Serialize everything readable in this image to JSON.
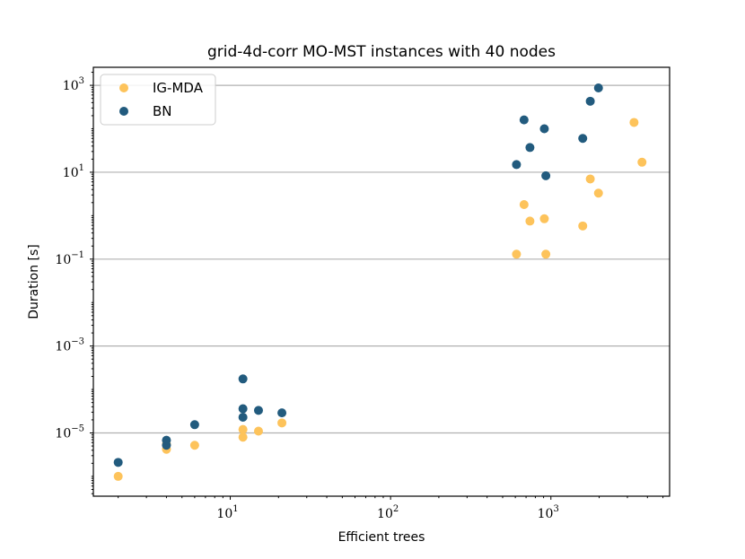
{
  "chart_data": {
    "type": "scatter",
    "title": "grid-4d-corr MO-MST instances with 40 nodes",
    "xlabel": "Efficient trees",
    "ylabel": "Duration [s]",
    "xscale": "log",
    "yscale": "log",
    "xlim": [
      1.4,
      5500
    ],
    "ylim": [
      3.5e-07,
      2600
    ],
    "grid": "y-major",
    "legend_position": "top-left",
    "xticks": [
      {
        "value": 10,
        "base": "10",
        "exp": "1"
      },
      {
        "value": 100,
        "base": "10",
        "exp": "2"
      },
      {
        "value": 1000,
        "base": "10",
        "exp": "3"
      }
    ],
    "yticks": [
      {
        "value": 1000.0,
        "base": "10",
        "exp": "3"
      },
      {
        "value": 10.0,
        "base": "10",
        "exp": "1"
      },
      {
        "value": 0.1,
        "base": "10",
        "exp": "−1"
      },
      {
        "value": 0.001,
        "base": "10",
        "exp": "−3"
      },
      {
        "value": 1e-05,
        "base": "10",
        "exp": "−5"
      }
    ],
    "series": [
      {
        "name": "IG-MDA",
        "color": "#fdc35b",
        "points": [
          [
            2,
            1e-06
          ],
          [
            4,
            4.2e-06
          ],
          [
            4,
            5.5e-06
          ],
          [
            6,
            5.2e-06
          ],
          [
            12,
            8e-06
          ],
          [
            12,
            1.2e-05
          ],
          [
            15,
            1.1e-05
          ],
          [
            21,
            1.7e-05
          ],
          [
            610,
            0.13
          ],
          [
            680,
            1.8
          ],
          [
            740,
            0.75
          ],
          [
            910,
            0.85
          ],
          [
            930,
            0.13
          ],
          [
            1580,
            0.58
          ],
          [
            1760,
            7.0
          ],
          [
            1980,
            3.3
          ],
          [
            3300,
            140
          ],
          [
            3700,
            17
          ]
        ]
      },
      {
        "name": "BN",
        "color": "#225b7e",
        "points": [
          [
            2,
            2.1e-06
          ],
          [
            4,
            5.2e-06
          ],
          [
            4,
            6.8e-06
          ],
          [
            6,
            1.55e-05
          ],
          [
            12,
            2.3e-05
          ],
          [
            12,
            3.6e-05
          ],
          [
            12,
            0.000175
          ],
          [
            15,
            3.3e-05
          ],
          [
            21,
            2.9e-05
          ],
          [
            610,
            15
          ],
          [
            680,
            160
          ],
          [
            740,
            37
          ],
          [
            910,
            100
          ],
          [
            930,
            8.3
          ],
          [
            1580,
            60
          ],
          [
            1760,
            430
          ],
          [
            1980,
            870
          ]
        ]
      }
    ]
  }
}
